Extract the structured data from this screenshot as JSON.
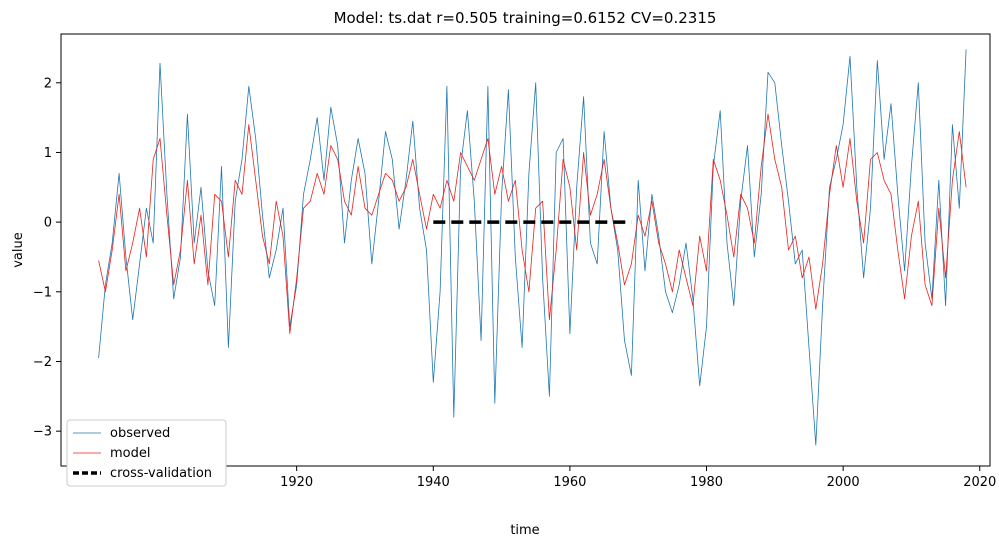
{
  "chart_data": {
    "type": "line",
    "title": "Model: ts.dat  r=0.505  training=0.6152  CV=0.2315",
    "xlabel": "time",
    "ylabel": "value",
    "xlim": [
      1885.5,
      2021.5
    ],
    "ylim": [
      -3.5,
      2.7
    ],
    "xticks": [
      1900,
      1920,
      1940,
      1960,
      1980,
      2000,
      2020
    ],
    "xtick_labels": [
      "1900",
      "1920",
      "1940",
      "1960",
      "1980",
      "2000",
      "2020"
    ],
    "yticks": [
      -3,
      -2,
      -1,
      0,
      1,
      2
    ],
    "ytick_labels": [
      "−3",
      "−2",
      "−1",
      "0",
      "1",
      "2"
    ],
    "grid": false,
    "legend_position": "lower-left",
    "series": [
      {
        "name": "observed",
        "color": "#1f77b4",
        "x": [
          1891,
          1892,
          1893,
          1894,
          1895,
          1896,
          1897,
          1898,
          1899,
          1900,
          1901,
          1902,
          1903,
          1904,
          1905,
          1906,
          1907,
          1908,
          1909,
          1910,
          1911,
          1912,
          1913,
          1914,
          1915,
          1916,
          1917,
          1918,
          1919,
          1920,
          1921,
          1922,
          1923,
          1924,
          1925,
          1926,
          1927,
          1928,
          1929,
          1930,
          1931,
          1932,
          1933,
          1934,
          1935,
          1936,
          1937,
          1938,
          1939,
          1940,
          1941,
          1942,
          1943,
          1944,
          1945,
          1946,
          1947,
          1948,
          1949,
          1950,
          1951,
          1952,
          1953,
          1954,
          1955,
          1956,
          1957,
          1958,
          1959,
          1960,
          1961,
          1962,
          1963,
          1964,
          1965,
          1966,
          1967,
          1968,
          1969,
          1970,
          1971,
          1972,
          1973,
          1974,
          1975,
          1976,
          1977,
          1978,
          1979,
          1980,
          1981,
          1982,
          1983,
          1984,
          1985,
          1986,
          1987,
          1988,
          1989,
          1990,
          1991,
          1992,
          1993,
          1994,
          1995,
          1996,
          1997,
          1998,
          1999,
          2000,
          2001,
          2002,
          2003,
          2004,
          2005,
          2006,
          2007,
          2008,
          2009,
          2010,
          2011,
          2012,
          2013,
          2014,
          2015,
          2016,
          2017,
          2018
        ],
        "values": [
          -1.95,
          -0.9,
          -0.3,
          0.7,
          -0.5,
          -1.4,
          -0.6,
          0.2,
          -0.3,
          2.28,
          0.4,
          -1.1,
          -0.5,
          1.55,
          -0.3,
          0.5,
          -0.7,
          -1.2,
          0.8,
          -1.8,
          0.3,
          0.9,
          1.95,
          1.2,
          0.1,
          -0.8,
          -0.4,
          0.2,
          -1.5,
          -0.9,
          0.4,
          0.9,
          1.5,
          0.6,
          1.65,
          1.1,
          -0.3,
          0.6,
          1.2,
          0.7,
          -0.6,
          0.3,
          1.3,
          0.9,
          -0.1,
          0.6,
          1.45,
          0.2,
          -0.4,
          -2.3,
          -1.0,
          1.95,
          -2.8,
          0.8,
          1.6,
          0.3,
          -1.7,
          1.95,
          -2.6,
          0.4,
          1.9,
          -0.5,
          -1.8,
          0.7,
          2.0,
          -0.8,
          -2.5,
          1.0,
          1.2,
          -1.6,
          0.5,
          1.8,
          -0.3,
          -0.6,
          1.3,
          0.2,
          -0.4,
          -1.7,
          -2.2,
          0.6,
          -0.7,
          0.4,
          -0.2,
          -1.0,
          -1.3,
          -0.9,
          -0.3,
          -1.1,
          -2.35,
          -1.5,
          0.8,
          1.6,
          -0.3,
          -1.2,
          0.3,
          1.1,
          -0.5,
          0.4,
          2.15,
          2.0,
          1.1,
          0.3,
          -0.6,
          -0.4,
          -1.8,
          -3.2,
          -1.2,
          0.5,
          0.9,
          1.4,
          2.38,
          0.5,
          -0.8,
          0.2,
          2.32,
          0.9,
          1.7,
          0.4,
          -0.7,
          0.8,
          2.0,
          -0.3,
          -1.1,
          0.6,
          -1.2,
          1.4,
          0.2,
          2.48
        ]
      },
      {
        "name": "model",
        "color": "#e8231d",
        "x": [
          1891,
          1892,
          1893,
          1894,
          1895,
          1896,
          1897,
          1898,
          1899,
          1900,
          1901,
          1902,
          1903,
          1904,
          1905,
          1906,
          1907,
          1908,
          1909,
          1910,
          1911,
          1912,
          1913,
          1914,
          1915,
          1916,
          1917,
          1918,
          1919,
          1920,
          1921,
          1922,
          1923,
          1924,
          1925,
          1926,
          1927,
          1928,
          1929,
          1930,
          1931,
          1932,
          1933,
          1934,
          1935,
          1936,
          1937,
          1938,
          1939,
          1940,
          1941,
          1942,
          1943,
          1944,
          1945,
          1946,
          1947,
          1948,
          1949,
          1950,
          1951,
          1952,
          1953,
          1954,
          1955,
          1956,
          1957,
          1958,
          1959,
          1960,
          1961,
          1962,
          1963,
          1964,
          1965,
          1966,
          1967,
          1968,
          1969,
          1970,
          1971,
          1972,
          1973,
          1974,
          1975,
          1976,
          1977,
          1978,
          1979,
          1980,
          1981,
          1982,
          1983,
          1984,
          1985,
          1986,
          1987,
          1988,
          1989,
          1990,
          1991,
          1992,
          1993,
          1994,
          1995,
          1996,
          1997,
          1998,
          1999,
          2000,
          2001,
          2002,
          2003,
          2004,
          2005,
          2006,
          2007,
          2008,
          2009,
          2010,
          2011,
          2012,
          2013,
          2014,
          2015,
          2016,
          2017,
          2018
        ],
        "values": [
          -0.55,
          -1.0,
          -0.4,
          0.4,
          -0.7,
          -0.3,
          0.2,
          -0.5,
          0.9,
          1.2,
          0.1,
          -0.9,
          -0.4,
          0.6,
          -0.6,
          0.1,
          -0.9,
          0.4,
          0.3,
          -0.5,
          0.6,
          0.4,
          1.4,
          0.6,
          -0.2,
          -0.6,
          0.3,
          -0.2,
          -1.6,
          -0.8,
          0.2,
          0.3,
          0.7,
          0.4,
          1.1,
          0.9,
          0.3,
          0.1,
          0.8,
          0.2,
          0.1,
          0.4,
          0.7,
          0.6,
          0.3,
          0.5,
          0.9,
          0.4,
          -0.1,
          0.4,
          0.2,
          0.6,
          0.3,
          1.0,
          0.8,
          0.6,
          0.9,
          1.2,
          0.4,
          0.8,
          0.3,
          0.6,
          -0.4,
          -1.0,
          0.2,
          0.3,
          -1.4,
          -0.4,
          0.9,
          0.5,
          -0.4,
          1.0,
          0.1,
          0.4,
          0.9,
          0.2,
          -0.3,
          -0.9,
          -0.6,
          0.1,
          -0.2,
          0.3,
          -0.3,
          -0.6,
          -1.0,
          -0.4,
          -0.8,
          -1.2,
          -0.2,
          -0.7,
          0.9,
          0.6,
          0.1,
          -0.5,
          0.4,
          0.2,
          -0.3,
          0.8,
          1.55,
          0.9,
          0.5,
          -0.4,
          -0.2,
          -0.8,
          -0.5,
          -1.25,
          -0.6,
          0.4,
          1.1,
          0.5,
          1.2,
          0.3,
          -0.3,
          0.9,
          1.0,
          0.6,
          0.4,
          -0.4,
          -1.1,
          -0.2,
          0.3,
          -0.9,
          -1.2,
          0.2,
          -0.8,
          0.6,
          1.3,
          0.5
        ]
      },
      {
        "name": "cross-validation",
        "color": "#000000",
        "dashed": true,
        "x": [
          1940,
          1969
        ],
        "values": [
          0,
          0
        ]
      }
    ]
  }
}
